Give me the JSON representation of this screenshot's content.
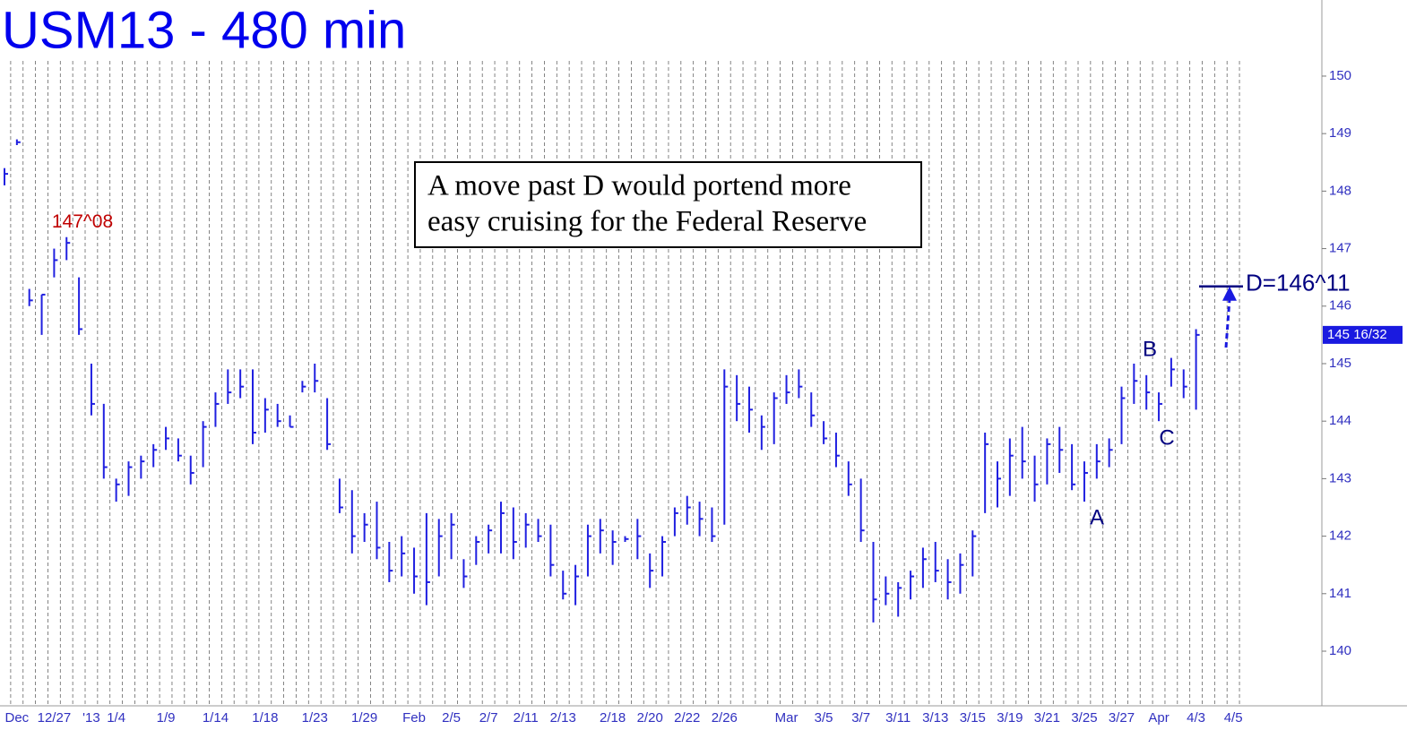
{
  "chart_data": {
    "type": "ohlc",
    "title": "USM13 - 480 min",
    "color": "#2020e0",
    "categories": [
      null,
      "Dec",
      null,
      null,
      "12/27",
      null,
      null,
      "'13",
      null,
      "1/4",
      null,
      null,
      null,
      "1/9",
      null,
      null,
      null,
      "1/14",
      null,
      null,
      null,
      "1/18",
      null,
      null,
      null,
      "1/23",
      null,
      null,
      null,
      "1/29",
      null,
      null,
      null,
      "Feb",
      null,
      null,
      "2/5",
      null,
      null,
      "2/7",
      null,
      null,
      "2/11",
      null,
      null,
      "2/13",
      null,
      null,
      null,
      "2/18",
      null,
      null,
      "2/20",
      null,
      null,
      "2/22",
      null,
      null,
      "2/26",
      null,
      null,
      null,
      null,
      "Mar",
      null,
      null,
      "3/5",
      null,
      null,
      "3/7",
      null,
      null,
      "3/11",
      null,
      null,
      "3/13",
      null,
      null,
      "3/15",
      null,
      null,
      "3/19",
      null,
      null,
      "3/21",
      null,
      null,
      "3/25",
      null,
      null,
      "3/27",
      null,
      null,
      "Apr",
      null,
      null,
      "4/3",
      null,
      null,
      "4/5"
    ],
    "high": [
      148.4,
      148.9,
      146.3,
      146.2,
      147.0,
      147.2,
      146.5,
      145.0,
      144.3,
      143.0,
      143.3,
      143.4,
      143.6,
      143.9,
      143.7,
      143.4,
      144.0,
      144.5,
      144.9,
      144.9,
      144.9,
      144.4,
      144.3,
      144.1,
      144.7,
      145.0,
      144.4,
      143.0,
      142.8,
      142.4,
      142.6,
      141.9,
      142.0,
      141.8,
      142.4,
      142.3,
      142.4,
      141.6,
      142.0,
      142.2,
      142.6,
      142.5,
      142.4,
      142.3,
      142.2,
      141.4,
      141.5,
      142.2,
      142.3,
      142.1,
      142.0,
      142.3,
      141.7,
      142.0,
      142.5,
      142.7,
      142.6,
      142.5,
      144.9,
      144.8,
      144.6,
      144.1,
      144.5,
      144.8,
      144.9,
      144.5,
      144.0,
      143.8,
      143.3,
      143.0,
      141.9,
      141.3,
      141.2,
      141.4,
      141.8,
      141.9,
      141.6,
      141.7,
      142.1,
      143.8,
      143.3,
      143.7,
      143.9,
      143.4,
      143.7,
      143.9,
      143.6,
      143.3,
      143.6,
      143.7,
      144.6,
      145.0,
      144.8,
      144.5,
      145.1,
      144.9,
      145.6,
      null,
      null,
      null
    ],
    "low": [
      148.1,
      148.8,
      146.0,
      145.5,
      146.5,
      146.8,
      145.5,
      144.1,
      143.0,
      142.6,
      142.7,
      143.0,
      143.2,
      143.5,
      143.3,
      142.9,
      143.2,
      143.9,
      144.3,
      144.4,
      143.6,
      143.8,
      143.9,
      143.9,
      144.5,
      144.5,
      143.5,
      142.4,
      141.7,
      141.9,
      141.6,
      141.2,
      141.3,
      141.0,
      140.8,
      141.3,
      141.6,
      141.1,
      141.5,
      141.7,
      141.7,
      141.6,
      141.8,
      141.9,
      141.3,
      140.9,
      140.8,
      141.3,
      141.7,
      141.5,
      141.9,
      141.6,
      141.1,
      141.3,
      142.0,
      142.2,
      142.0,
      141.9,
      142.2,
      144.0,
      143.8,
      143.5,
      143.6,
      144.3,
      144.4,
      143.9,
      143.6,
      143.2,
      142.7,
      141.9,
      140.5,
      140.8,
      140.6,
      140.9,
      141.1,
      141.2,
      140.9,
      141.0,
      141.3,
      142.4,
      142.5,
      142.7,
      143.0,
      142.6,
      142.9,
      143.1,
      142.8,
      142.6,
      143.0,
      143.2,
      143.6,
      144.3,
      144.2,
      144.0,
      144.6,
      144.4,
      144.2,
      null,
      null,
      null
    ],
    "close": [
      148.3,
      148.85,
      146.1,
      146.2,
      146.8,
      147.1,
      145.6,
      144.3,
      143.2,
      142.9,
      143.2,
      143.3,
      143.5,
      143.7,
      143.4,
      143.1,
      143.9,
      144.3,
      144.5,
      144.6,
      143.8,
      144.2,
      144.0,
      143.9,
      144.6,
      144.7,
      143.6,
      142.5,
      142.0,
      142.2,
      141.8,
      141.4,
      141.7,
      141.3,
      141.2,
      142.0,
      142.2,
      141.3,
      141.9,
      142.1,
      142.4,
      141.9,
      142.2,
      142.0,
      141.5,
      141.0,
      141.3,
      142.0,
      142.1,
      141.9,
      141.95,
      142.0,
      141.4,
      141.9,
      142.4,
      142.5,
      142.3,
      142.0,
      144.6,
      144.3,
      144.2,
      143.9,
      144.4,
      144.5,
      144.6,
      144.1,
      143.7,
      143.4,
      142.9,
      142.1,
      140.9,
      141.0,
      141.1,
      141.3,
      141.6,
      141.4,
      141.2,
      141.5,
      142.0,
      143.6,
      143.0,
      143.4,
      143.3,
      142.9,
      143.6,
      143.5,
      142.9,
      143.1,
      143.3,
      143.5,
      144.4,
      144.7,
      144.5,
      144.3,
      144.9,
      144.6,
      145.5,
      null,
      null,
      null
    ],
    "ylim": [
      139,
      150.3
    ],
    "yticks": [
      140,
      141,
      142,
      143,
      144,
      145,
      146,
      147,
      148,
      149,
      150
    ],
    "last_price": {
      "value": 145.5,
      "label": "145 16/32"
    },
    "high_label": {
      "value": 147.25,
      "label": "147^08"
    },
    "target": {
      "value": 146.34375,
      "label": "D=146^11"
    },
    "annotations": [
      "A",
      "B",
      "C"
    ],
    "note": [
      "A move past D would portend more",
      "easy cruising for the Federal Reserve"
    ]
  }
}
